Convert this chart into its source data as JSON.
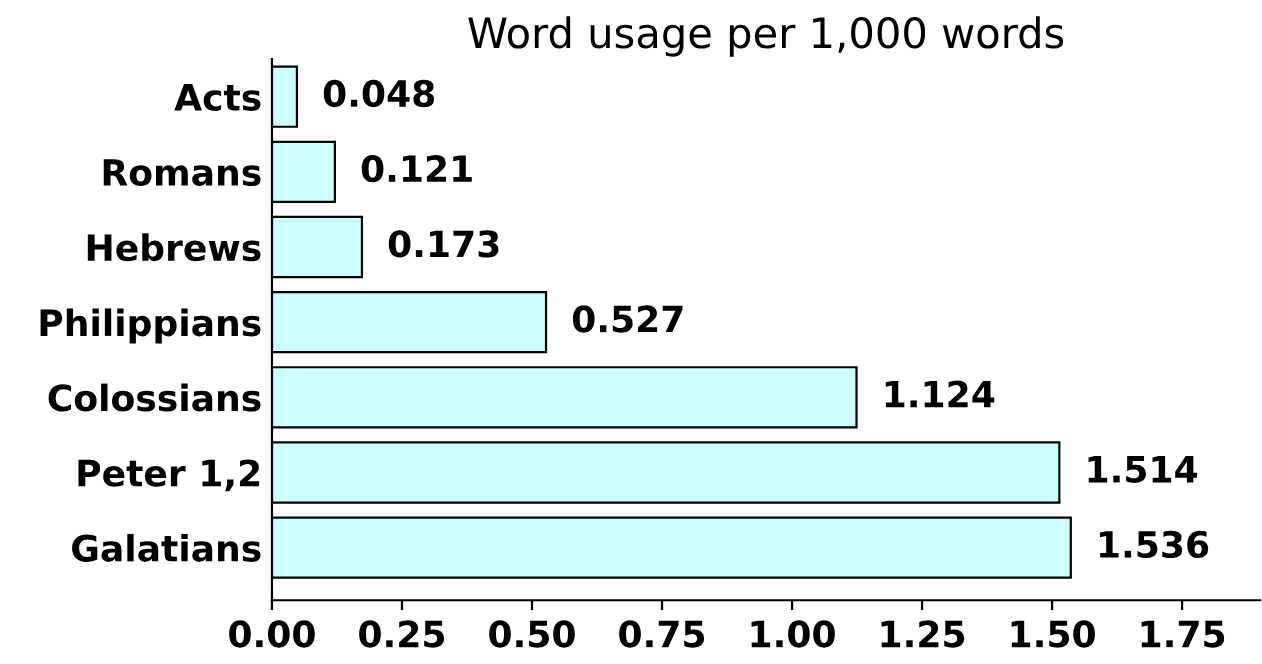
{
  "chart_data": {
    "type": "bar",
    "orientation": "horizontal",
    "title": "Word usage per 1,000 words",
    "categories": [
      "Acts",
      "Romans",
      "Hebrews",
      "Philippians",
      "Colossians",
      "Peter 1,2",
      "Galatians"
    ],
    "series": [
      {
        "color": "#ccffff",
        "values": [
          0.048,
          0.121,
          0.173,
          0.527,
          1.124,
          1.514,
          1.536
        ]
      }
    ],
    "data_labels": true,
    "xlim": [
      0,
      1.9
    ],
    "xticks": [
      {
        "value": 0,
        "label": "0.00"
      },
      {
        "value": 0.25,
        "label": "0.25"
      },
      {
        "value": 0.5,
        "label": "0.50"
      },
      {
        "value": 0.75,
        "label": "0.75"
      },
      {
        "value": 1,
        "label": "1.00"
      },
      {
        "value": 1.25,
        "label": "1.25"
      },
      {
        "value": 1.5,
        "label": "1.50"
      },
      {
        "value": 1.75,
        "label": "1.75"
      }
    ],
    "grid": false,
    "legend": false
  }
}
